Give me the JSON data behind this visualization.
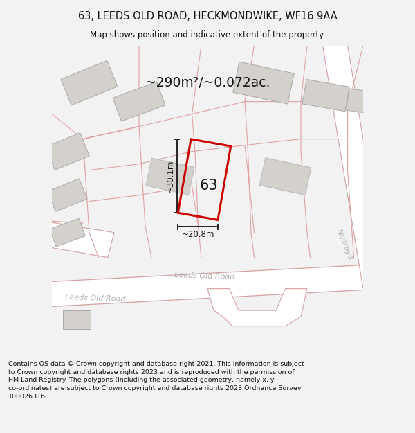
{
  "title_line1": "63, LEEDS OLD ROAD, HECKMONDWIKE, WF16 9AA",
  "title_line2": "Map shows position and indicative extent of the property.",
  "area_text": "~290m²/~0.072ac.",
  "label_63": "63",
  "dim_height": "~30.1m",
  "dim_width": "~20.8m",
  "road_label_center": "Leeds Old Road",
  "road_label_left": "Leeds Old Road",
  "road_label_right": "Nunroyd",
  "footer_text": "Contains OS data © Crown copyright and database right 2021. This information is subject to Crown copyright and database rights 2023 and is reproduced with the permission of HM Land Registry. The polygons (including the associated geometry, namely x, y co-ordinates) are subject to Crown copyright and database rights 2023 Ordnance Survey 100026316.",
  "bg_color": "#f2f2f2",
  "map_bg": "#eeebe8",
  "road_fill": "#ffffff",
  "building_fill": "#d4d0cc",
  "road_line_color": "#d4a0a0",
  "boundary_color": "#e0a0a0",
  "subject_color": "#cc0000",
  "dim_line_color": "#222222",
  "title_color": "#111111",
  "footer_color": "#111111",
  "area_text_color": "#111111"
}
